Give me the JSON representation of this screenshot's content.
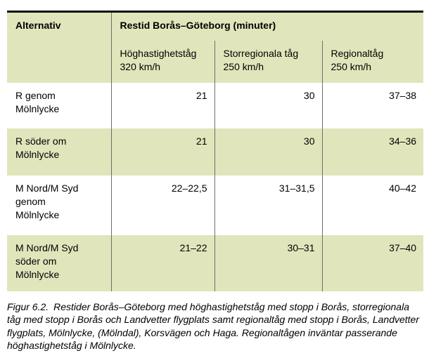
{
  "table": {
    "corner_header": "Alternativ",
    "span_header": "Restid Borås–Göteborg (minuter)",
    "subheaders": [
      "Höghastighetståg\n320 km/h",
      "Storregionala tåg\n250 km/h",
      "Regionaltåg\n250 km/h"
    ],
    "rows": [
      {
        "alternative": "R genom\nMölnlycke",
        "values": [
          "21",
          "30",
          "37–38"
        ]
      },
      {
        "alternative": "R söder om\nMölnlycke",
        "values": [
          "21",
          "30",
          "34–36"
        ]
      },
      {
        "alternative": "M Nord/M Syd\ngenom\nMölnlycke",
        "values": [
          "22–22,5",
          "31–31,5",
          "40–42"
        ]
      },
      {
        "alternative": "M Nord/M Syd\nsöder om\nMölnlycke",
        "values": [
          "21–22",
          "30–31",
          "37–40"
        ]
      }
    ]
  },
  "figure": {
    "caption_label": "Figur 6.2.",
    "caption_text": "Restider Borås–Göteborg med höghastighetståg med stopp i Borås, storregionala tåg med stopp i Borås och Landvetter flygplats samt regionaltåg med stopp i Borås, Landvetter flygplats, Mölnlycke, (Mölndal), Korsvägen och Haga. Regionaltågen inväntar passerande höghastighetståg i Mölnlycke."
  },
  "colors": {
    "header_bg": "#e1e5bb",
    "row_stripe_bg": "#e1e5bb",
    "row_bg": "#ffffff",
    "divider": "#6e6e6e",
    "top_rule": "#0a0a0a",
    "text": "#000000"
  }
}
